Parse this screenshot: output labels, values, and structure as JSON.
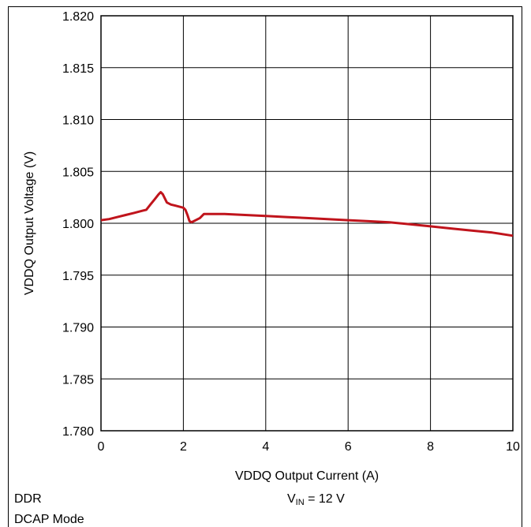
{
  "chart_data": {
    "type": "line",
    "xlabel": "VDDQ Output Current (A)",
    "ylabel": "VDDQ Output Voltage (V)",
    "xlim": [
      0,
      10
    ],
    "ylim": [
      1.78,
      1.82
    ],
    "x_ticks": [
      "0",
      "2",
      "4",
      "6",
      "8",
      "10"
    ],
    "y_ticks": [
      "1.820",
      "1.815",
      "1.810",
      "1.805",
      "1.800",
      "1.795",
      "1.790",
      "1.785",
      "1.780"
    ],
    "grid": true,
    "line_color": "#c0141c",
    "series": [
      {
        "x": [
          0,
          0.2,
          0.4,
          0.6,
          0.8,
          1.0,
          1.1,
          1.2,
          1.3,
          1.4,
          1.45,
          1.5,
          1.6,
          1.7,
          1.8,
          2.0,
          2.05,
          2.1,
          2.15,
          2.2,
          2.3,
          2.4,
          2.5,
          2.8,
          3.0,
          3.5,
          4.0,
          4.5,
          5.0,
          5.5,
          6.0,
          6.5,
          7.0,
          7.5,
          8.0,
          8.5,
          9.0,
          9.5,
          10.0
        ],
        "y": [
          1.8003,
          1.8004,
          1.8006,
          1.8008,
          1.801,
          1.8012,
          1.8013,
          1.8018,
          1.8023,
          1.8028,
          1.803,
          1.8028,
          1.802,
          1.8018,
          1.8017,
          1.8015,
          1.8013,
          1.8008,
          1.8002,
          1.8001,
          1.8003,
          1.8005,
          1.8009,
          1.8009,
          1.8009,
          1.8008,
          1.8007,
          1.8006,
          1.8005,
          1.8004,
          1.8003,
          1.8002,
          1.8001,
          1.7999,
          1.7997,
          1.7995,
          1.7993,
          1.7991,
          1.7988
        ]
      }
    ]
  },
  "annotations": {
    "left_line1": "DDR",
    "left_line2": "DCAP Mode",
    "vin_label": "V",
    "vin_subscript": "IN",
    "vin_value": " = 12 V"
  }
}
